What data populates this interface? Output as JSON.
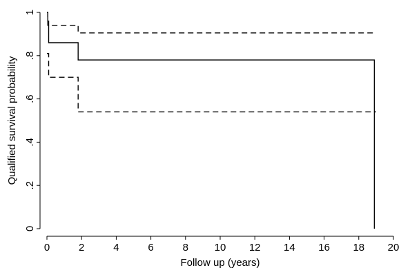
{
  "chart_data": {
    "type": "line",
    "xlabel": "Follow up (years)",
    "ylabel": "Qualified survival probability",
    "xlim": [
      0,
      20
    ],
    "ylim": [
      0,
      1
    ],
    "x_ticks": [
      0,
      2,
      4,
      6,
      8,
      10,
      12,
      14,
      16,
      18,
      20
    ],
    "y_ticks": [
      0,
      0.2,
      0.4,
      0.6,
      0.8,
      1
    ],
    "y_tick_labels": [
      "0",
      ".2",
      ".4",
      ".6",
      ".8",
      "1"
    ],
    "grid": false,
    "series": [
      {
        "style": "solid",
        "points": [
          [
            0,
            1.0
          ],
          [
            0.05,
            1.0
          ],
          [
            0.05,
            0.94
          ],
          [
            0.1,
            0.94
          ],
          [
            0.1,
            0.86
          ],
          [
            1.8,
            0.86
          ],
          [
            1.8,
            0.78
          ],
          [
            18.9,
            0.78
          ],
          [
            18.9,
            0.0
          ]
        ]
      },
      {
        "style": "dashed",
        "points": [
          [
            0,
            1.0
          ],
          [
            0.05,
            1.0
          ],
          [
            0.05,
            0.96
          ],
          [
            0.1,
            0.96
          ],
          [
            0.1,
            0.94
          ],
          [
            1.8,
            0.94
          ],
          [
            1.8,
            0.905
          ],
          [
            19.0,
            0.905
          ]
        ]
      },
      {
        "style": "dashed",
        "points": [
          [
            0,
            0.81
          ],
          [
            0.1,
            0.81
          ],
          [
            0.1,
            0.7
          ],
          [
            1.8,
            0.7
          ],
          [
            1.8,
            0.54
          ],
          [
            19.0,
            0.54
          ]
        ]
      }
    ]
  }
}
